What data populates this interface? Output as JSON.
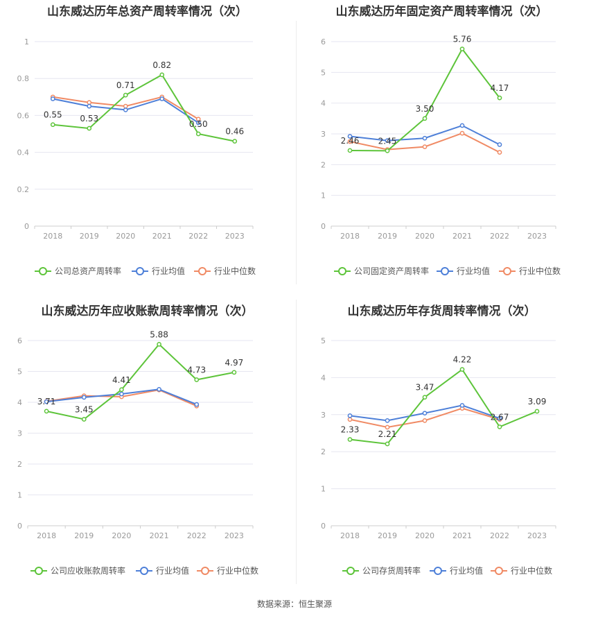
{
  "source_label": "数据来源：恒生聚源",
  "legend": {
    "company": "",
    "avg": "行业均值",
    "median": "行业中位数"
  },
  "colors": {
    "company": "#5dc43a",
    "avg": "#4d7fd8",
    "median": "#f08a64",
    "grid": "#e6e6f0",
    "axis": "#999999",
    "label": "#333333"
  },
  "chart_data": [
    {
      "type": "line",
      "title": "山东威达历年总资产周转率情况（次）",
      "categories": [
        "2018",
        "2019",
        "2020",
        "2021",
        "2022",
        "2023"
      ],
      "yticks": [
        "0",
        "0.2",
        "0.4",
        "0.6",
        "0.8",
        "1"
      ],
      "ylim": [
        0,
        1
      ],
      "series": [
        {
          "name": "公司总资产周转率",
          "key": "company",
          "values": [
            0.55,
            0.53,
            0.71,
            0.82,
            0.5,
            0.46
          ],
          "labels": [
            "0.55",
            "0.53",
            "0.71",
            "0.82",
            "0.50",
            "0.46"
          ]
        },
        {
          "name": "行业均值",
          "key": "avg",
          "values": [
            0.69,
            0.65,
            0.63,
            0.69,
            0.56,
            null
          ]
        },
        {
          "name": "行业中位数",
          "key": "median",
          "values": [
            0.7,
            0.67,
            0.65,
            0.7,
            0.58,
            null
          ]
        }
      ]
    },
    {
      "type": "line",
      "title": "山东威达历年固定资产周转率情况（次）",
      "categories": [
        "2018",
        "2019",
        "2020",
        "2021",
        "2022",
        "2023"
      ],
      "yticks": [
        "0",
        "1",
        "2",
        "3",
        "4",
        "5",
        "6"
      ],
      "ylim": [
        0,
        6
      ],
      "series": [
        {
          "name": "公司固定资产周转率",
          "key": "company",
          "values": [
            2.46,
            2.45,
            3.5,
            5.76,
            4.17,
            null
          ],
          "labels": [
            "2.46",
            "2.45",
            "3.50",
            "5.76",
            "4.17",
            ""
          ]
        },
        {
          "name": "行业均值",
          "key": "avg",
          "values": [
            2.92,
            2.78,
            2.86,
            3.27,
            2.65,
            null
          ]
        },
        {
          "name": "行业中位数",
          "key": "median",
          "values": [
            2.75,
            2.49,
            2.58,
            3.02,
            2.4,
            null
          ]
        }
      ]
    },
    {
      "type": "line",
      "title": "山东威达历年应收账款周转率情况（次）",
      "categories": [
        "2018",
        "2019",
        "2020",
        "2021",
        "2022",
        "2023"
      ],
      "yticks": [
        "0",
        "1",
        "2",
        "3",
        "4",
        "5",
        "6"
      ],
      "ylim": [
        0,
        6
      ],
      "series": [
        {
          "name": "公司应收账款周转率",
          "key": "company",
          "values": [
            3.71,
            3.45,
            4.41,
            5.88,
            4.73,
            4.97
          ],
          "labels": [
            "3.71",
            "3.45",
            "4.41",
            "5.88",
            "4.73",
            "4.97"
          ]
        },
        {
          "name": "行业均值",
          "key": "avg",
          "values": [
            4.02,
            4.16,
            4.27,
            4.42,
            3.93,
            null
          ]
        },
        {
          "name": "行业中位数",
          "key": "median",
          "values": [
            4.03,
            4.21,
            4.18,
            4.4,
            3.88,
            null
          ]
        }
      ]
    },
    {
      "type": "line",
      "title": "山东威达历年存货周转率情况（次）",
      "categories": [
        "2018",
        "2019",
        "2020",
        "2021",
        "2022",
        "2023"
      ],
      "yticks": [
        "0",
        "1",
        "2",
        "3",
        "4",
        "5"
      ],
      "ylim": [
        0,
        5
      ],
      "series": [
        {
          "name": "公司存货周转率",
          "key": "company",
          "values": [
            2.33,
            2.21,
            3.47,
            4.22,
            2.67,
            3.09
          ],
          "labels": [
            "2.33",
            "2.21",
            "3.47",
            "4.22",
            "2.67",
            "3.09"
          ]
        },
        {
          "name": "行业均值",
          "key": "avg",
          "values": [
            2.97,
            2.84,
            3.04,
            3.25,
            2.9,
            null
          ]
        },
        {
          "name": "行业中位数",
          "key": "median",
          "values": [
            2.87,
            2.66,
            2.84,
            3.17,
            2.87,
            null
          ]
        }
      ]
    }
  ]
}
